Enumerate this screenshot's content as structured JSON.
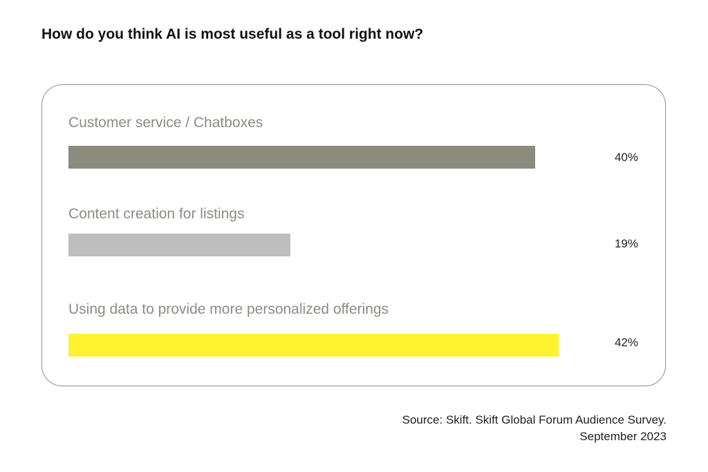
{
  "chart_data": {
    "type": "bar",
    "orientation": "horizontal",
    "title": "How do you think AI is most useful as a tool right now?",
    "categories": [
      "Customer service / Chatboxes",
      "Content creation for listings",
      "Using data to provide more personalized offerings"
    ],
    "values": [
      40,
      19,
      42
    ],
    "value_labels": [
      "40%",
      "19%",
      "42%"
    ],
    "unit": "%",
    "xlim": [
      0,
      52
    ],
    "grid": false,
    "colors": [
      "#8b8b7e",
      "#bebebe",
      "#fff22e"
    ]
  },
  "source": {
    "line1": "Source: Skift. Skift Global Forum Audience Survey.",
    "line2": "September 2023"
  }
}
